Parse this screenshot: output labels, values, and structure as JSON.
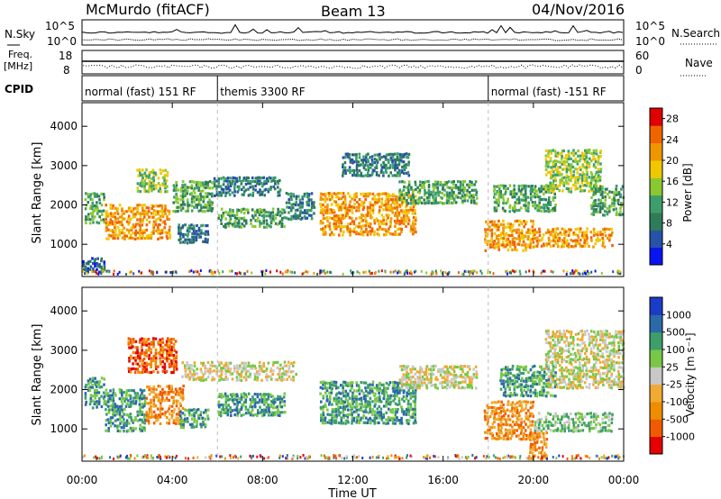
{
  "header": {
    "station": "McMurdo (fitACF)",
    "beam": "Beam 13",
    "date": "04/Nov/2016"
  },
  "noise_panel": {
    "left_label": "N.Sky",
    "right_label": "N.Search",
    "ticks_left": [
      "10^5",
      "10^0"
    ],
    "ticks_right": [
      "10^5",
      "10^0"
    ]
  },
  "freq_panel": {
    "left_label_1": "Freq.",
    "left_label_2": "[MHz]",
    "right_label": "Nave",
    "ticks_left": [
      "18",
      "8"
    ],
    "ticks_right": [
      "60",
      "0"
    ]
  },
  "cpid": {
    "label": "CPID",
    "segments": [
      {
        "text": "normal (fast) 151 RF",
        "start_hour": 0,
        "end_hour": 6
      },
      {
        "text": "themis 3300 RF",
        "start_hour": 6,
        "end_hour": 18
      },
      {
        "text": "normal (fast) -151 RF",
        "start_hour": 18,
        "end_hour": 24
      }
    ]
  },
  "colors": {
    "power_scale": [
      "#0a14f0",
      "#2852a8",
      "#2e7c5a",
      "#3c9e6a",
      "#8ac832",
      "#f0c800",
      "#f09600",
      "#f06400",
      "#e10000"
    ],
    "velocity_scale": [
      "#e60000",
      "#f05a00",
      "#f08c00",
      "#f0aa32",
      "#c8c8c8",
      "#78c846",
      "#3c9e6a",
      "#2a6aa8",
      "#1a3cc8"
    ]
  },
  "chart_data": [
    {
      "type": "heatmap",
      "title": "Power",
      "ylabel": "Slant Range [km]",
      "xlabel": "Time UT",
      "ylim": [
        180,
        4600
      ],
      "xlim": [
        0,
        24
      ],
      "yticks": [
        "1000",
        "2000",
        "3000",
        "4000"
      ],
      "xticks": [
        "00:00",
        "04:00",
        "08:00",
        "12:00",
        "16:00",
        "20:00",
        "00:00"
      ],
      "colorbar": {
        "label": "Power [dB]",
        "ticks": [
          "4",
          "8",
          "12",
          "16",
          "20",
          "24",
          "28"
        ],
        "range": [
          0,
          30
        ]
      },
      "regions": [
        {
          "t0": 0.1,
          "t1": 1.0,
          "r0": 1500,
          "r1": 2300,
          "level": 3
        },
        {
          "t0": 1.0,
          "t1": 3.9,
          "r0": 1100,
          "r1": 2000,
          "level": 6
        },
        {
          "t0": 2.4,
          "t1": 3.8,
          "r0": 2300,
          "r1": 2900,
          "level": 4
        },
        {
          "t0": 4.0,
          "t1": 5.8,
          "r0": 1800,
          "r1": 2600,
          "level": 3
        },
        {
          "t0": 4.2,
          "t1": 5.6,
          "r0": 1000,
          "r1": 1500,
          "level": 2
        },
        {
          "t0": 5.8,
          "t1": 8.8,
          "r0": 2200,
          "r1": 2700,
          "level": 2
        },
        {
          "t0": 6.0,
          "t1": 9.0,
          "r0": 1400,
          "r1": 1900,
          "level": 3
        },
        {
          "t0": 9.0,
          "t1": 10.3,
          "r0": 1600,
          "r1": 2300,
          "level": 2
        },
        {
          "t0": 10.5,
          "t1": 14.8,
          "r0": 1200,
          "r1": 2300,
          "level": 6
        },
        {
          "t0": 11.5,
          "t1": 14.5,
          "r0": 2700,
          "r1": 3300,
          "level": 2
        },
        {
          "t0": 14.0,
          "t1": 17.5,
          "r0": 2000,
          "r1": 2600,
          "level": 3
        },
        {
          "t0": 17.8,
          "t1": 20.0,
          "r0": 800,
          "r1": 1600,
          "level": 6
        },
        {
          "t0": 18.2,
          "t1": 21.0,
          "r0": 1800,
          "r1": 2500,
          "level": 3
        },
        {
          "t0": 20.0,
          "t1": 23.5,
          "r0": 900,
          "r1": 1400,
          "level": 6
        },
        {
          "t0": 20.5,
          "t1": 23.0,
          "r0": 2300,
          "r1": 3400,
          "level": 4
        },
        {
          "t0": 22.5,
          "t1": 24.0,
          "r0": 1700,
          "r1": 2500,
          "level": 3
        },
        {
          "t0": 0.0,
          "t1": 1.0,
          "r0": 250,
          "r1": 650,
          "level": 1
        }
      ]
    },
    {
      "type": "heatmap",
      "title": "Velocity",
      "ylabel": "Slant Range [km]",
      "xlabel": "Time UT",
      "ylim": [
        180,
        4600
      ],
      "xlim": [
        0,
        24
      ],
      "yticks": [
        "1000",
        "2000",
        "3000",
        "4000"
      ],
      "xticks": [
        "00:00",
        "04:00",
        "08:00",
        "12:00",
        "16:00",
        "20:00",
        "00:00"
      ],
      "colorbar": {
        "label": "Velocity [m s⁻¹]",
        "ticks": [
          "1000",
          "500",
          "100",
          "25",
          "-25",
          "-100",
          "-500",
          "-1000"
        ]
      },
      "regions": [
        {
          "t0": 0.1,
          "t1": 1.0,
          "r0": 1500,
          "r1": 2300,
          "level": 6
        },
        {
          "t0": 1.0,
          "t1": 2.8,
          "r0": 900,
          "r1": 2000,
          "level": 6
        },
        {
          "t0": 2.0,
          "t1": 4.2,
          "r0": 2400,
          "r1": 3300,
          "level": 1
        },
        {
          "t0": 2.8,
          "t1": 4.5,
          "r0": 1100,
          "r1": 2100,
          "level": 2
        },
        {
          "t0": 4.3,
          "t1": 5.6,
          "r0": 1000,
          "r1": 1500,
          "level": 6
        },
        {
          "t0": 4.4,
          "t1": 9.5,
          "r0": 2200,
          "r1": 2700,
          "level": 4
        },
        {
          "t0": 6.0,
          "t1": 9.0,
          "r0": 1300,
          "r1": 1900,
          "level": 6
        },
        {
          "t0": 10.5,
          "t1": 14.8,
          "r0": 1100,
          "r1": 2200,
          "level": 6
        },
        {
          "t0": 14.0,
          "t1": 17.5,
          "r0": 2000,
          "r1": 2600,
          "level": 4
        },
        {
          "t0": 17.8,
          "t1": 20.0,
          "r0": 700,
          "r1": 1700,
          "level": 2
        },
        {
          "t0": 18.5,
          "t1": 21.0,
          "r0": 1800,
          "r1": 2600,
          "level": 6
        },
        {
          "t0": 20.0,
          "t1": 23.5,
          "r0": 900,
          "r1": 1400,
          "level": 5
        },
        {
          "t0": 20.5,
          "t1": 24.0,
          "r0": 2000,
          "r1": 3500,
          "level": 4
        },
        {
          "t0": 19.8,
          "t1": 20.6,
          "r0": 200,
          "r1": 900,
          "level": 2
        }
      ]
    }
  ]
}
